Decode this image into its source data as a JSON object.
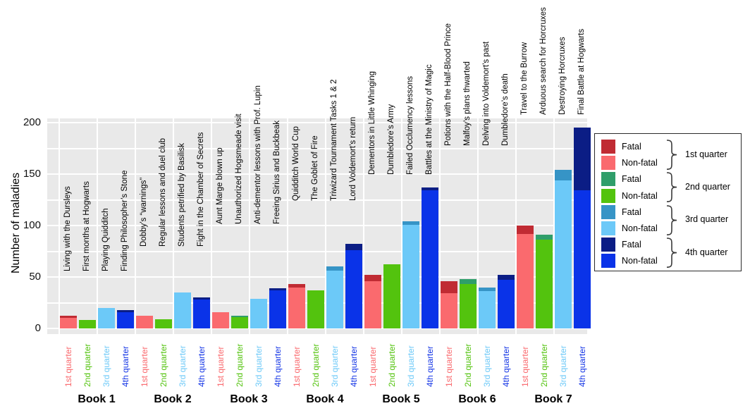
{
  "chart_data": {
    "type": "bar",
    "stacked": true,
    "grouped_by": "book",
    "title": "",
    "xlabel": "",
    "ylabel": "Number of maladies",
    "ylim": [
      0,
      200
    ],
    "yticks": [
      0,
      50,
      100,
      150,
      200
    ],
    "grid": true,
    "legend_position": "right",
    "legend": {
      "fatal_label": "Fatal",
      "nonfatal_label": "Non-fatal"
    },
    "quarters": [
      {
        "label": "1st quarter",
        "fatal_color": "#c02b33",
        "nonfatal_color": "#fa6a6e",
        "tick_color": "#fa6a6e"
      },
      {
        "label": "2nd quarter",
        "fatal_color": "#2f9e6a",
        "nonfatal_color": "#53c30e",
        "tick_color": "#53c30e"
      },
      {
        "label": "3rd quarter",
        "fatal_color": "#3694c6",
        "nonfatal_color": "#6cc9f8",
        "tick_color": "#6cc9f8"
      },
      {
        "label": "4th quarter",
        "fatal_color": "#0b1d85",
        "nonfatal_color": "#0a33e8",
        "tick_color": "#1536e6"
      }
    ],
    "books": [
      {
        "label": "Book 1",
        "episodes": [
          {
            "name": "Living with the Dursleys",
            "quarter": 1,
            "nonfatal": 10,
            "fatal": 2
          },
          {
            "name": "First months at Hogwarts",
            "quarter": 2,
            "nonfatal": 8,
            "fatal": 0
          },
          {
            "name": "Playing Quidditch",
            "quarter": 3,
            "nonfatal": 20,
            "fatal": 0
          },
          {
            "name": "Finding Philosopher’s Stone",
            "quarter": 4,
            "nonfatal": 16,
            "fatal": 2
          }
        ]
      },
      {
        "label": "Book 2",
        "episodes": [
          {
            "name": "Dobby’s “warnings”",
            "quarter": 1,
            "nonfatal": 12,
            "fatal": 0
          },
          {
            "name": "Regular lessons and duel club",
            "quarter": 2,
            "nonfatal": 9,
            "fatal": 0
          },
          {
            "name": "Students petrified by Basilisk",
            "quarter": 3,
            "nonfatal": 35,
            "fatal": 0
          },
          {
            "name": "Fight in the Chamber of Secrets",
            "quarter": 4,
            "nonfatal": 28,
            "fatal": 2
          }
        ]
      },
      {
        "label": "Book 3",
        "episodes": [
          {
            "name": "Aunt Marge blown up",
            "quarter": 1,
            "nonfatal": 16,
            "fatal": 0
          },
          {
            "name": "Unauthorized Hogsmeade visit",
            "quarter": 2,
            "nonfatal": 11,
            "fatal": 1
          },
          {
            "name": "Anti-dementor lessons with Prof. Lupin",
            "quarter": 3,
            "nonfatal": 29,
            "fatal": 0
          },
          {
            "name": "Freeing Sirius and Buckbeak",
            "quarter": 4,
            "nonfatal": 37,
            "fatal": 2
          }
        ]
      },
      {
        "label": "Book 4",
        "episodes": [
          {
            "name": "Quidditch World Cup",
            "quarter": 1,
            "nonfatal": 40,
            "fatal": 3
          },
          {
            "name": "The Goblet of Fire",
            "quarter": 2,
            "nonfatal": 37,
            "fatal": 0
          },
          {
            "name": "Triwizard Tournament Tasks 1 & 2",
            "quarter": 3,
            "nonfatal": 56,
            "fatal": 4
          },
          {
            "name": "Lord Voldemort’s return",
            "quarter": 4,
            "nonfatal": 76,
            "fatal": 6
          }
        ]
      },
      {
        "label": "Book 5",
        "episodes": [
          {
            "name": "Dementors in Little Whinging",
            "quarter": 1,
            "nonfatal": 46,
            "fatal": 6
          },
          {
            "name": "Dumbledore’s Army",
            "quarter": 2,
            "nonfatal": 62,
            "fatal": 0
          },
          {
            "name": "Failed Occlumency lessons",
            "quarter": 3,
            "nonfatal": 101,
            "fatal": 3
          },
          {
            "name": "Battles at the Ministry of Magic",
            "quarter": 4,
            "nonfatal": 134,
            "fatal": 3
          }
        ]
      },
      {
        "label": "Book 6",
        "episodes": [
          {
            "name": "Potions with the Half-Blood Prince",
            "quarter": 1,
            "nonfatal": 34,
            "fatal": 12
          },
          {
            "name": "Malfoy’s plans thwarted",
            "quarter": 2,
            "nonfatal": 43,
            "fatal": 5
          },
          {
            "name": "Delving into Voldemort’s past",
            "quarter": 3,
            "nonfatal": 36,
            "fatal": 4
          },
          {
            "name": "Dumbledore’s death",
            "quarter": 4,
            "nonfatal": 47,
            "fatal": 5
          }
        ]
      },
      {
        "label": "Book 7",
        "episodes": [
          {
            "name": "Travel to the Burrow",
            "quarter": 1,
            "nonfatal": 92,
            "fatal": 8
          },
          {
            "name": "Arduous search for Horcruxes",
            "quarter": 2,
            "nonfatal": 86,
            "fatal": 5
          },
          {
            "name": "Destroying Horcruxes",
            "quarter": 3,
            "nonfatal": 144,
            "fatal": 10
          },
          {
            "name": "Final Battle at Hogwarts",
            "quarter": 4,
            "nonfatal": 134,
            "fatal": 61
          }
        ]
      }
    ]
  }
}
